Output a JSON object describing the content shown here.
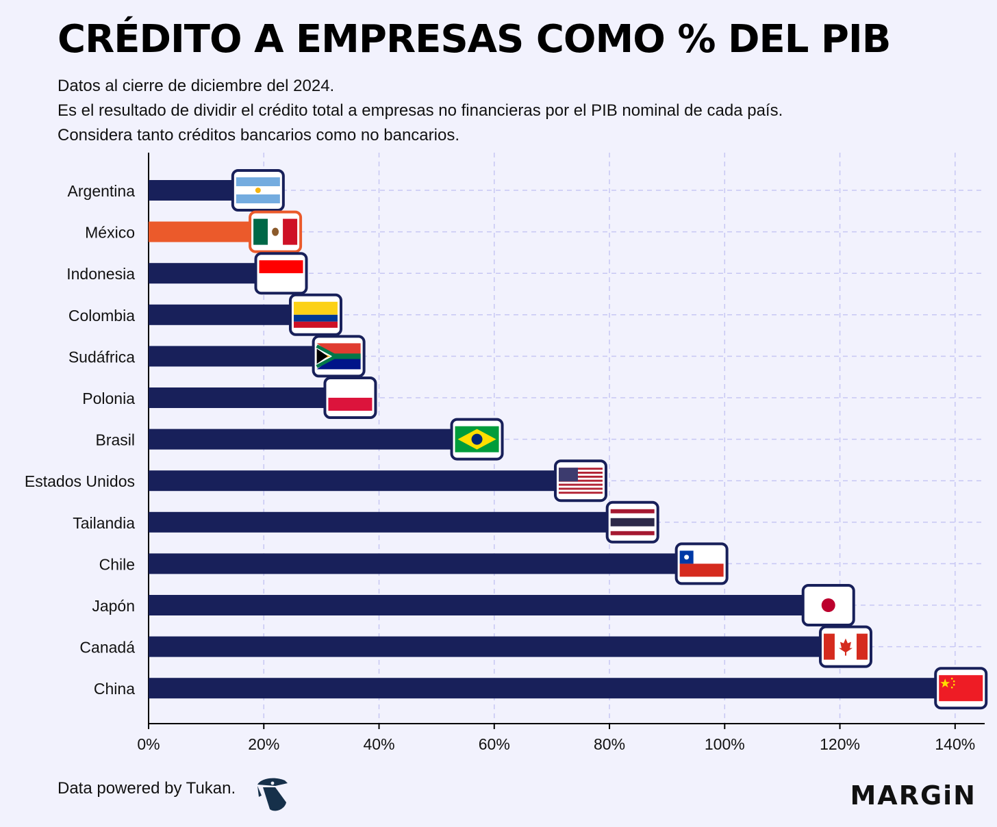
{
  "header": {
    "title": "CRÉDITO A EMPRESAS COMO % DEL PIB",
    "subtitle_lines": [
      "Datos al cierre de diciembre del 2024.",
      "Es el resultado de dividir el crédito total a empresas no financieras por el PIB nominal de cada país.",
      "Considera tanto créditos bancarios como no bancarios."
    ]
  },
  "chart_data": {
    "type": "bar",
    "orientation": "horizontal",
    "categories": [
      "Argentina",
      "México",
      "Indonesia",
      "Colombia",
      "Sudáfrica",
      "Polonia",
      "Brasil",
      "Estados Unidos",
      "Tailandia",
      "Chile",
      "Japón",
      "Canadá",
      "China"
    ],
    "values": [
      19,
      22,
      23,
      29,
      33,
      35,
      57,
      75,
      84,
      96,
      118,
      121,
      141
    ],
    "flags": [
      "argentina",
      "mexico",
      "indonesia",
      "colombia",
      "south-africa",
      "poland",
      "brazil",
      "usa",
      "thailand",
      "chile",
      "japan",
      "canada",
      "china"
    ],
    "highlight": "México",
    "xlim": [
      0,
      145
    ],
    "xticks": [
      0,
      20,
      40,
      60,
      80,
      100,
      120,
      140
    ],
    "xtick_labels": [
      "0%",
      "20%",
      "40%",
      "60%",
      "80%",
      "100%",
      "120%",
      "140%"
    ],
    "grid": true,
    "colors": {
      "bar": "#18205a",
      "highlight": "#eb5a2b",
      "grid": "#c7c7f3",
      "background": "#f2f2fd"
    }
  },
  "footer": {
    "source": "Data powered by Tukan.",
    "brand": "MARGiN"
  }
}
